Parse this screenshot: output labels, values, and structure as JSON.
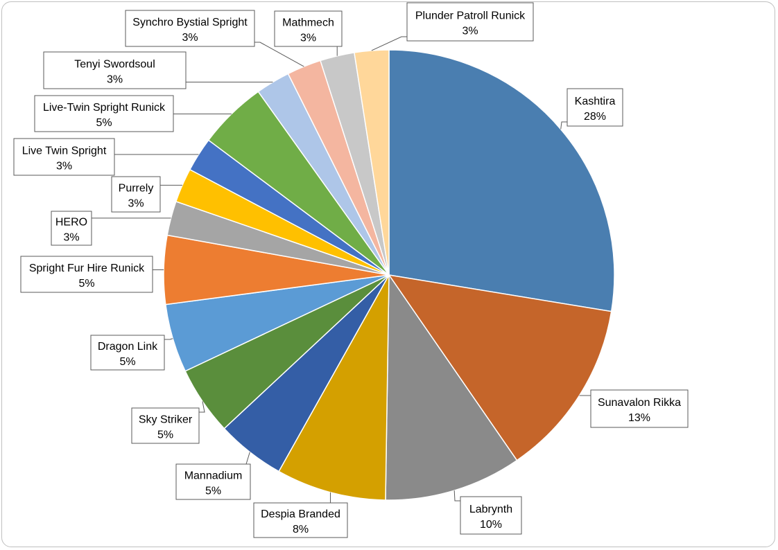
{
  "chart_data": {
    "type": "pie",
    "title": "",
    "legend": "none",
    "slices": [
      {
        "label": "Kashtira",
        "value": 28,
        "display": "28%",
        "color": "#4a7eb0"
      },
      {
        "label": "Sunavalon Rikka",
        "value": 13,
        "display": "13%",
        "color": "#c5652a"
      },
      {
        "label": "Labrynth",
        "value": 10,
        "display": "10%",
        "color": "#8a8a8a"
      },
      {
        "label": "Despia Branded",
        "value": 8,
        "display": "8%",
        "color": "#d4a000"
      },
      {
        "label": "Mannadium",
        "value": 5,
        "display": "5%",
        "color": "#345ea6"
      },
      {
        "label": "Sky Striker",
        "value": 5,
        "display": "5%",
        "color": "#5a8e3c"
      },
      {
        "label": "Dragon Link",
        "value": 5,
        "display": "5%",
        "color": "#5b9bd5"
      },
      {
        "label": "Spright Fur Hire Runick",
        "value": 5,
        "display": "5%",
        "color": "#ed7d31"
      },
      {
        "label": "HERO",
        "value": 2.5,
        "display": "3%",
        "color": "#a5a5a5"
      },
      {
        "label": "Purrely",
        "value": 2.5,
        "display": "3%",
        "color": "#ffc000"
      },
      {
        "label": "Live Twin Spright",
        "value": 2.5,
        "display": "3%",
        "color": "#4472c4"
      },
      {
        "label": "Live-Twin Spright Runick",
        "value": 5,
        "display": "5%",
        "color": "#70ad47"
      },
      {
        "label": "Tenyi Swordsoul",
        "value": 2.5,
        "display": "3%",
        "color": "#aec6e8"
      },
      {
        "label": "Synchro Bystial Spright",
        "value": 2.5,
        "display": "3%",
        "color": "#f4b6a0"
      },
      {
        "label": "Mathmech",
        "value": 2.5,
        "display": "3%",
        "color": "#c8c8c8"
      },
      {
        "label": "Plunder Patroll Runick",
        "value": 2.5,
        "display": "3%",
        "color": "#ffd79a"
      }
    ]
  }
}
